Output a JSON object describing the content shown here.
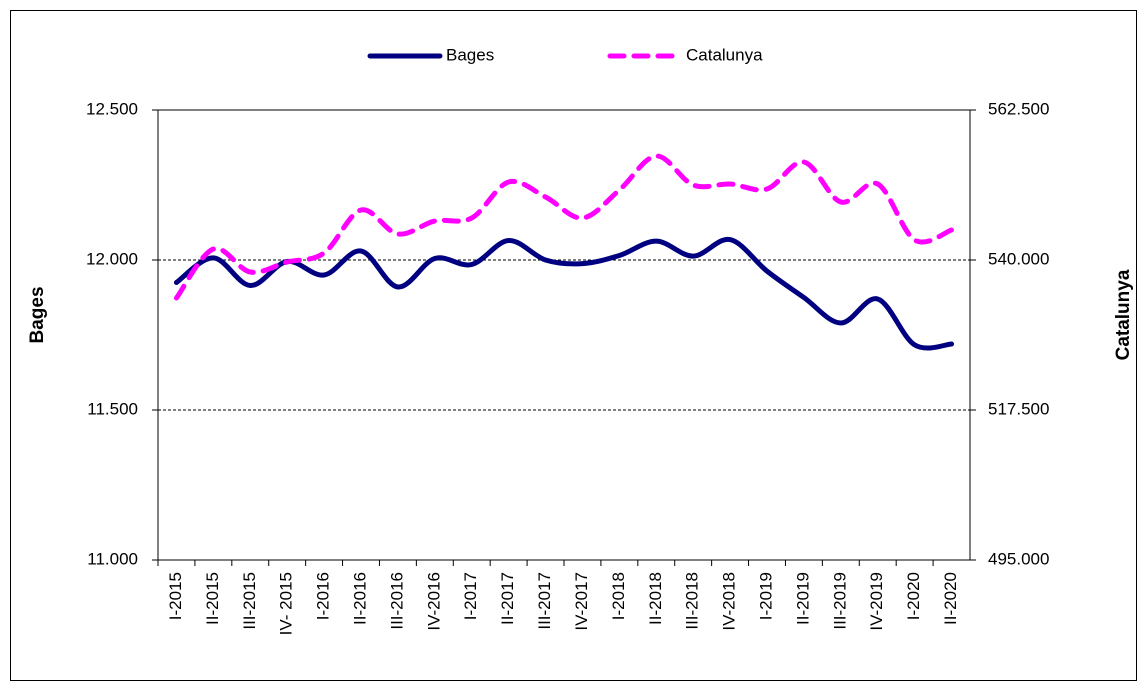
{
  "chart_data": {
    "type": "line",
    "categories": [
      "I-2015",
      "II-2015",
      "III-2015",
      "IV- 2015",
      "I-2016",
      "II-2016",
      "III-2016",
      "IV-2016",
      "I-2017",
      "II-2017",
      "III-2017",
      "IV-2017",
      "I-2018",
      "II-2018",
      "III-2018",
      "IV-2018",
      "I-2019",
      "II-2019",
      "III-2019",
      "IV-2019",
      "I-2020",
      "II-2020"
    ],
    "series": [
      {
        "name": "Bages",
        "color": "#000080",
        "dash": false,
        "axis": "y",
        "values": [
          11925,
          12007,
          11915,
          11995,
          11950,
          12030,
          11910,
          12005,
          11985,
          12065,
          12000,
          11988,
          12015,
          12063,
          12013,
          12068,
          11963,
          11875,
          11790,
          11870,
          11717,
          11720
        ]
      },
      {
        "name": "Catalunya",
        "color": "#ff00ff",
        "dash": true,
        "axis": "y2",
        "values": [
          534300,
          541650,
          538200,
          539700,
          541050,
          547500,
          543900,
          545850,
          546300,
          551700,
          549450,
          546300,
          550500,
          555600,
          551250,
          551400,
          550650,
          554700,
          548700,
          551400,
          543000,
          544500
        ]
      }
    ],
    "ylabel": "Bages",
    "y2label": "Catalunya",
    "ylim": [
      11000,
      12500
    ],
    "yticks": [
      {
        "value": 11000,
        "label": "11.000"
      },
      {
        "value": 11500,
        "label": "11.500"
      },
      {
        "value": 12000,
        "label": "12.000"
      },
      {
        "value": 12500,
        "label": "12.500"
      }
    ],
    "y2lim": [
      495000,
      562500
    ],
    "y2ticks": [
      {
        "value": 495000,
        "label": "495.000"
      },
      {
        "value": 517500,
        "label": "517.500"
      },
      {
        "value": 540000,
        "label": "540.000"
      },
      {
        "value": 562500,
        "label": "562.500"
      }
    ],
    "grid": true,
    "legend": "top"
  }
}
